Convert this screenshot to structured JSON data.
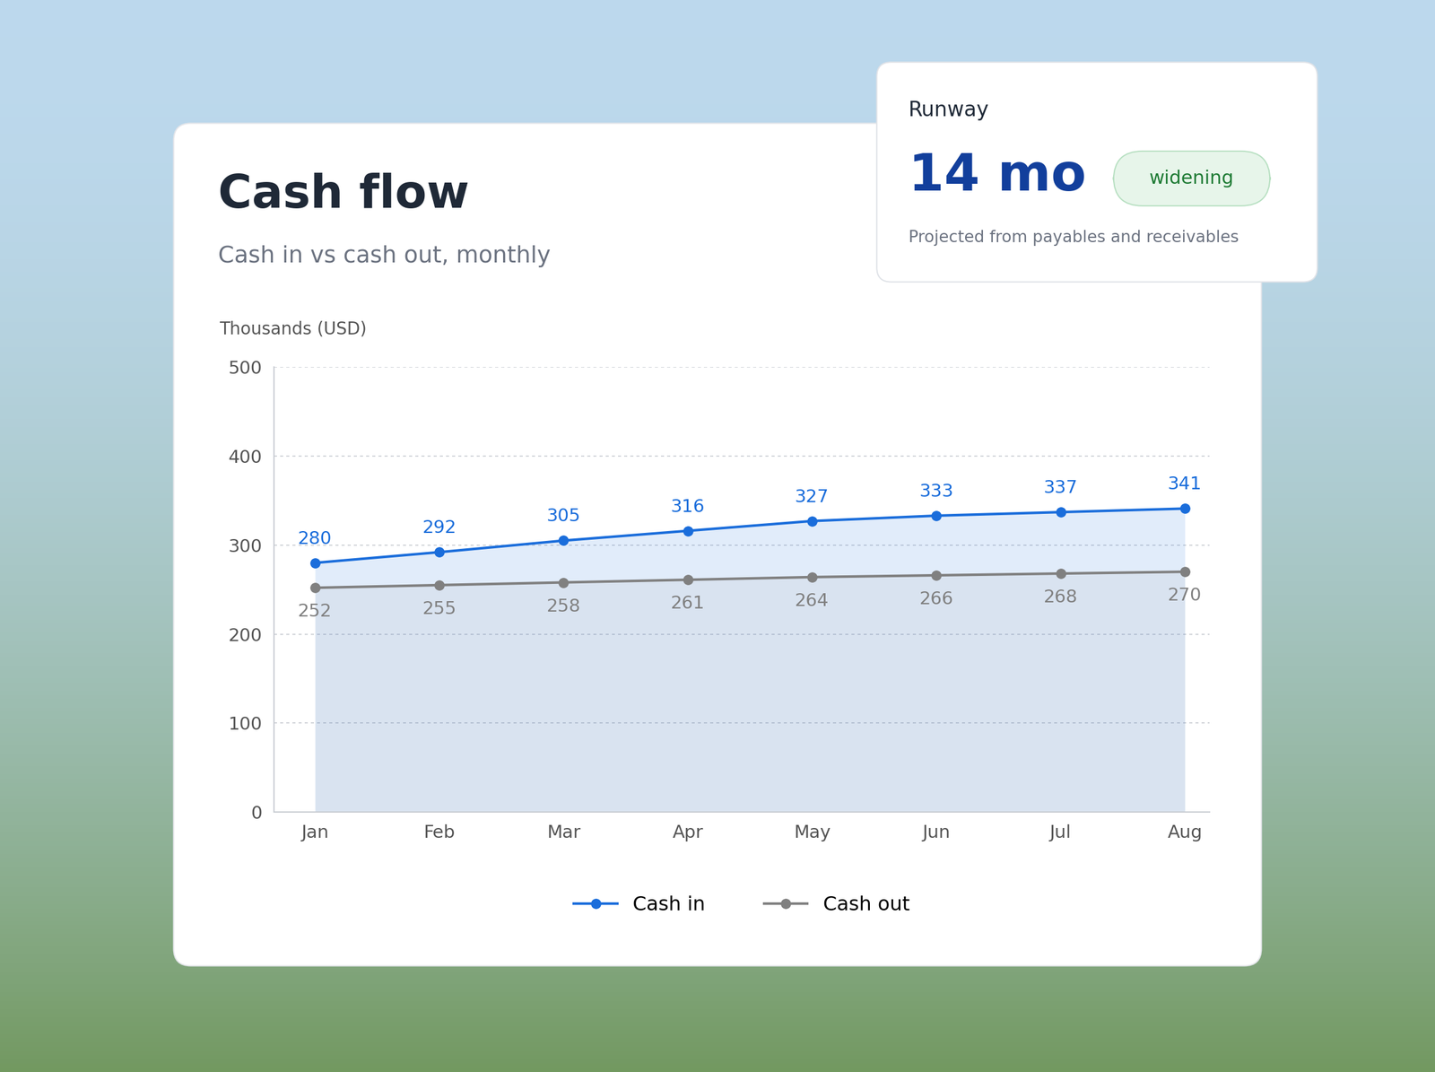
{
  "chart_data": {
    "type": "line",
    "title": "Cash flow",
    "subtitle": "Cash in vs cash out, monthly",
    "y_label": "Thousands (USD)",
    "categories": [
      "Jan",
      "Feb",
      "Mar",
      "Apr",
      "May",
      "Jun",
      "Jul",
      "Aug"
    ],
    "series": [
      {
        "name": "Cash in",
        "color": "#1a6ddb",
        "marker": "o",
        "line_style": "solid",
        "values": [
          280,
          292,
          305,
          316,
          327,
          333,
          337,
          341
        ]
      },
      {
        "name": "Cash out",
        "color": "#808080",
        "marker": "o",
        "line_style": "solid",
        "values": [
          252,
          255,
          258,
          261,
          264,
          266,
          268,
          270
        ]
      }
    ],
    "ylim": [
      0,
      500
    ],
    "yticks": [
      0,
      100,
      200,
      300,
      400,
      500
    ],
    "grid": true,
    "legend": "lower center",
    "data_labels": true,
    "annotations": [
      {
        "title": "Runway",
        "value": "14 mo",
        "badge": "widening",
        "note": "Projected from payables and receivables"
      }
    ]
  }
}
